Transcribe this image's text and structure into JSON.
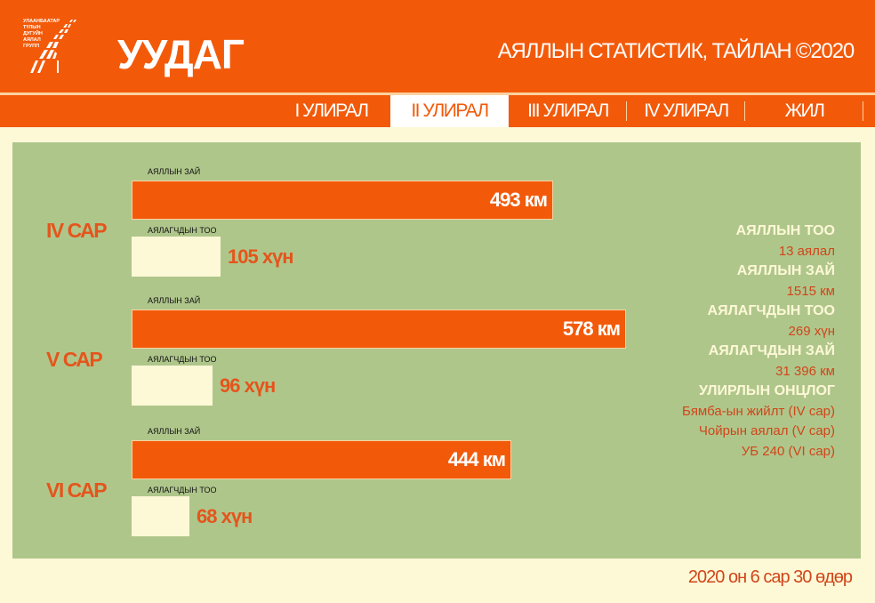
{
  "header": {
    "logo_text": [
      "УЛААНБААТАР",
      "ТҮЛЫН",
      "ДУГУЙН",
      "АЯЛАЛ",
      "ГРУПП"
    ],
    "brand": "УУДАГ",
    "title": "АЯЛЛЫН СТАТИСТИК, ТАЙЛАН ©2020"
  },
  "tabs": [
    {
      "label": "I УЛИРАЛ",
      "active": false
    },
    {
      "label": "II УЛИРАЛ",
      "active": true
    },
    {
      "label": "III УЛИРАЛ",
      "active": false
    },
    {
      "label": "IV УЛИРАЛ",
      "active": false
    },
    {
      "label": "ЖИЛ",
      "active": false
    }
  ],
  "months": [
    {
      "name": "IV САР",
      "distance_label": "АЯЛЛЫН ЗАЙ",
      "distance": 493,
      "distance_text": "493 км",
      "riders_label": "АЯЛАГЧДЫН ТОО",
      "riders": 105,
      "riders_text": "105 хүн"
    },
    {
      "name": "V САР",
      "distance_label": "АЯЛЛЫН ЗАЙ",
      "distance": 578,
      "distance_text": "578 км",
      "riders_label": "АЯЛАГЧДЫН ТОО",
      "riders": 96,
      "riders_text": "96 хүн"
    },
    {
      "name": "VI САР",
      "distance_label": "АЯЛЛЫН ЗАЙ",
      "distance": 444,
      "distance_text": "444 км",
      "riders_label": "АЯЛАГЧДЫН ТОО",
      "riders": 68,
      "riders_text": "68 хүн"
    }
  ],
  "stats": [
    {
      "label": "АЯЛЛЫН ТОО",
      "values": [
        "13 аялал"
      ]
    },
    {
      "label": "АЯЛЛЫН ЗАЙ",
      "values": [
        "1515 км"
      ]
    },
    {
      "label": "АЯЛАГЧДЫН ТОО",
      "values": [
        "269 хүн"
      ]
    },
    {
      "label": "АЯЛАГЧДЫН ЗАЙ",
      "values": [
        "31 396 км"
      ]
    },
    {
      "label": "УЛИРЛЫН ОНЦЛОГ",
      "values": [
        "Бямба-ын жийлт (IV сар)",
        "Чойрын аялал (V сар)",
        "УБ 240 (VI сар)"
      ]
    }
  ],
  "footer": {
    "date": "2020 он 6 сар 30 өдөр"
  },
  "colors": {
    "accent": "#f25a0a",
    "panel": "#afc68b",
    "cream": "#fdf8d6"
  }
}
